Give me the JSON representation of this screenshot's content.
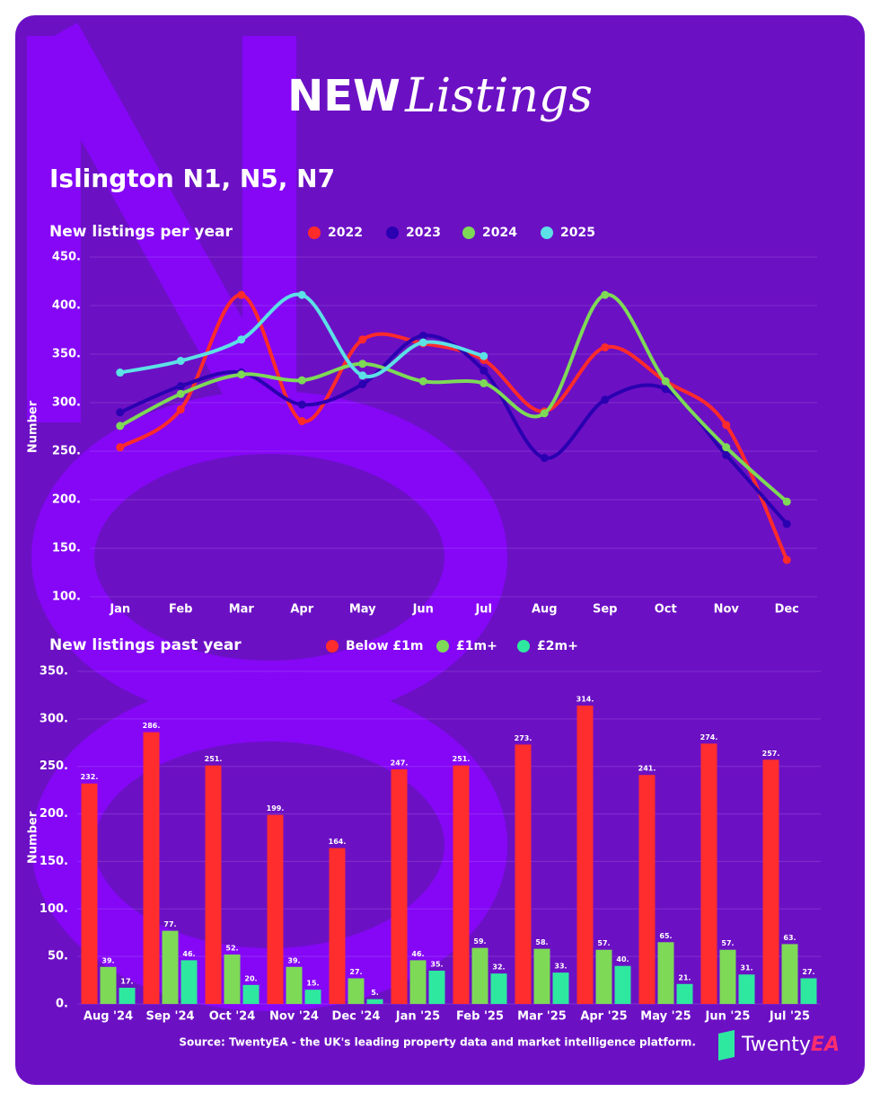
{
  "title_bold": "NEW",
  "title_italic": "Listings",
  "subtitle": "Islington N1, N5, N7",
  "source": "Source: TwentyEA - the UK's leading property data and market intelligence platform.",
  "logo": {
    "first": "Twenty",
    "second": "EA"
  },
  "chart_data": [
    {
      "type": "line",
      "title": "New listings per year",
      "y_label": "Number",
      "categories": [
        "Jan",
        "Feb",
        "Mar",
        "Apr",
        "May",
        "Jun",
        "Jul",
        "Aug",
        "Sep",
        "Oct",
        "Nov",
        "Dec"
      ],
      "series": [
        {
          "name": "2022",
          "color": "#ff2b2b",
          "values": [
            254,
            293,
            411,
            281,
            365,
            361,
            344,
            291,
            357,
            322,
            277,
            138
          ]
        },
        {
          "name": "2023",
          "color": "#2a00b0",
          "values": [
            290,
            317,
            331,
            298,
            319,
            369,
            333,
            243,
            303,
            314,
            246,
            175
          ]
        },
        {
          "name": "2024",
          "color": "#7ed957",
          "values": [
            276,
            309,
            329,
            323,
            340,
            322,
            320,
            289,
            411,
            322,
            254,
            198
          ]
        },
        {
          "name": "2025",
          "color": "#5ce1e6",
          "values": [
            331,
            343,
            365,
            411,
            328,
            362,
            348,
            null,
            null,
            null,
            null,
            null
          ]
        }
      ],
      "ylim": [
        100,
        450
      ],
      "yticks": [
        {
          "value": 100,
          "label": "100."
        },
        {
          "value": 150,
          "label": "150."
        },
        {
          "value": 200,
          "label": "200."
        },
        {
          "value": 250,
          "label": "250."
        },
        {
          "value": 300,
          "label": "300."
        },
        {
          "value": 350,
          "label": "350."
        },
        {
          "value": 400,
          "label": "400."
        },
        {
          "value": 450,
          "label": "450."
        }
      ],
      "grid": true
    },
    {
      "type": "bar",
      "title": "New listings past year",
      "y_label": "Number",
      "categories": [
        "Aug '24",
        "Sep '24",
        "Oct '24",
        "Nov '24",
        "Dec '24",
        "Jan '25",
        "Feb '25",
        "Mar '25",
        "Apr '25",
        "May '25",
        "Jun '25",
        "Jul '25"
      ],
      "series": [
        {
          "name": "Below £1m",
          "color": "#ff2d2d",
          "values": [
            232,
            286,
            251,
            199,
            164,
            247,
            251,
            273,
            314,
            241,
            274,
            257
          ],
          "value_labels": [
            "232.",
            "286.",
            "251.",
            "199.",
            "164.",
            "247.",
            "251.",
            "273.",
            "314.",
            "241.",
            "274.",
            "257."
          ]
        },
        {
          "name": "£1m+",
          "color": "#7ed957",
          "values": [
            39,
            77,
            52,
            39,
            27,
            46,
            59,
            58,
            57,
            65,
            57,
            63
          ],
          "value_labels": [
            "39.",
            "77.",
            "52.",
            "39.",
            "27.",
            "46.",
            "59.",
            "58.",
            "57.",
            "65.",
            "57.",
            "63."
          ]
        },
        {
          "name": "£2m+",
          "color": "#2ee8a0",
          "values": [
            17,
            46,
            20,
            15,
            5,
            35,
            32,
            33,
            40,
            21,
            31,
            27
          ],
          "value_labels": [
            "17.",
            "46.",
            "20.",
            "15.",
            "5.",
            "35.",
            "32.",
            "33.",
            "40.",
            "21.",
            "31.",
            "27."
          ]
        }
      ],
      "ylim": [
        0,
        350
      ],
      "yticks": [
        {
          "value": 0,
          "label": "0."
        },
        {
          "value": 50,
          "label": "50."
        },
        {
          "value": 100,
          "label": "100."
        },
        {
          "value": 150,
          "label": "150."
        },
        {
          "value": 200,
          "label": "200."
        },
        {
          "value": 250,
          "label": "250."
        },
        {
          "value": 300,
          "label": "300."
        },
        {
          "value": 350,
          "label": "350."
        }
      ],
      "grid": true
    }
  ]
}
